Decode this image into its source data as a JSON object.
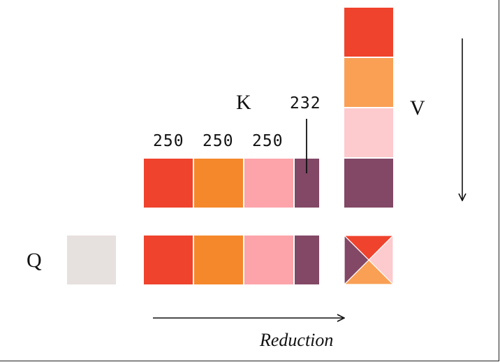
{
  "labels": {
    "q": "Q",
    "k": "K",
    "v": "V",
    "reduction": "Reduction"
  },
  "k_block_sizes": [
    "250",
    "250",
    "250",
    "232"
  ],
  "colors": {
    "red": "#ef432d",
    "orange": "#f5882b",
    "orange_light": "#f9a055",
    "pink": "#fca4aa",
    "pink_light": "#fdcacd",
    "purple": "#824866",
    "gray": "#e6e0df"
  }
}
